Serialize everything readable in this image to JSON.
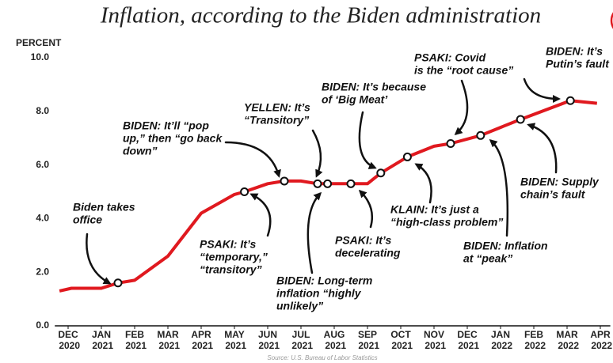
{
  "chart_data": {
    "type": "line",
    "title": "Inflation, according to the Biden administration",
    "y_label": "PERCENT",
    "source": "Source: U.S. Bureau of Labor Statistics",
    "xlim": [
      -0.4,
      16.3
    ],
    "ylim": [
      0,
      10
    ],
    "xticks": [
      {
        "value": 0,
        "label": "DEC 2020"
      },
      {
        "value": 1,
        "label": "JAN 2021"
      },
      {
        "value": 2,
        "label": "FEB 2021"
      },
      {
        "value": 3,
        "label": "MAR 2021"
      },
      {
        "value": 4,
        "label": "APR 2021"
      },
      {
        "value": 5,
        "label": "MAY 2021"
      },
      {
        "value": 6,
        "label": "JUN 2021"
      },
      {
        "value": 7,
        "label": "JUL 2021"
      },
      {
        "value": 8,
        "label": "AUG 2021"
      },
      {
        "value": 9,
        "label": "SEP 2021"
      },
      {
        "value": 10,
        "label": "OCT 2021"
      },
      {
        "value": 11,
        "label": "NOV 2021"
      },
      {
        "value": 12,
        "label": "DEC 2021"
      },
      {
        "value": 13,
        "label": "JAN 2022"
      },
      {
        "value": 14,
        "label": "FEB 2022"
      },
      {
        "value": 15,
        "label": "MAR 2022"
      },
      {
        "value": 16,
        "label": "APR 2022"
      }
    ],
    "yticks": [
      {
        "value": 0,
        "label": "0.0"
      },
      {
        "value": 2,
        "label": "2.0"
      },
      {
        "value": 4,
        "label": "4.0"
      },
      {
        "value": 6,
        "label": "6.0"
      },
      {
        "value": 8,
        "label": "8.0"
      },
      {
        "value": 10,
        "label": "10.0"
      }
    ],
    "series": [
      {
        "color": "#e0191f",
        "x": [
          -0.26,
          0.1,
          1,
          1.5,
          2,
          3,
          4,
          5,
          5.3,
          6,
          6.5,
          7,
          7.5,
          7.8,
          8.5,
          9,
          9.4,
          10.2,
          11,
          11.5,
          12.4,
          13,
          13.6,
          15.1,
          15.9
        ],
        "values": [
          1.3,
          1.4,
          1.4,
          1.6,
          1.7,
          2.6,
          4.2,
          4.9,
          5.0,
          5.3,
          5.4,
          5.4,
          5.3,
          5.3,
          5.3,
          5.3,
          5.7,
          6.3,
          6.7,
          6.8,
          7.1,
          7.4,
          7.7,
          8.4,
          8.3
        ]
      }
    ],
    "annotations": [
      {
        "text": [
          "Biden takes",
          "office"
        ],
        "x": 1.5,
        "y": 1.6
      },
      {
        "text": [
          "PSAKI: It’s",
          "“temporary,”",
          "“transitory”"
        ],
        "x": 5.3,
        "y": 5.0
      },
      {
        "text": [
          "BIDEN: It’ll “pop",
          "up,” then “go back",
          "down”"
        ],
        "x": 6.5,
        "y": 5.4
      },
      {
        "text": [
          "YELLEN: It’s",
          "“Transitory”"
        ],
        "x": 7.5,
        "y": 5.3
      },
      {
        "text": [
          "BIDEN: Long-term",
          "inflation “highly",
          "unlikely”"
        ],
        "x": 7.8,
        "y": 5.3
      },
      {
        "text": [
          "PSAKI: It’s",
          "decelerating"
        ],
        "x": 8.5,
        "y": 5.3
      },
      {
        "text": [
          "BIDEN: It’s because",
          "of ‘Big Meat’"
        ],
        "x": 9.4,
        "y": 5.7
      },
      {
        "text": [
          "KLAIN: It’s just a",
          "“high-class problem”"
        ],
        "x": 10.2,
        "y": 6.3
      },
      {
        "text": [
          "PSAKI: Covid",
          "is the “root cause”"
        ],
        "x": 11.5,
        "y": 6.8
      },
      {
        "text": [
          "BIDEN: Inflation",
          "at “peak”"
        ],
        "x": 12.4,
        "y": 7.1
      },
      {
        "text": [
          "BIDEN: Supply",
          "chain’s fault"
        ],
        "x": 13.6,
        "y": 7.7
      },
      {
        "text": [
          "BIDEN: It’s",
          "Putin’s fault"
        ],
        "x": 15.1,
        "y": 8.4
      }
    ]
  }
}
